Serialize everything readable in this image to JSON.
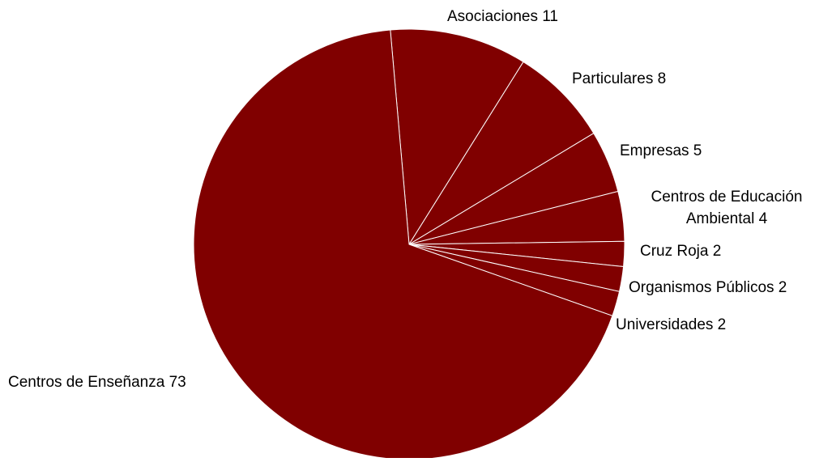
{
  "chart_data": {
    "type": "pie",
    "title": "",
    "slice_color": "#800000",
    "separator_color": "#ffffff",
    "start_angle_deg": -5,
    "direction": "clockwise",
    "slices": [
      {
        "label": "Asociaciones",
        "value": 11,
        "label_lines": [
          "Asociaciones 11"
        ]
      },
      {
        "label": "Particulares",
        "value": 8,
        "label_lines": [
          "Particulares 8"
        ]
      },
      {
        "label": "Empresas",
        "value": 5,
        "label_lines": [
          "Empresas 5"
        ]
      },
      {
        "label": "Centros de Educación Ambiental",
        "value": 4,
        "label_lines": [
          "Centros de Educación",
          "Ambiental 4"
        ]
      },
      {
        "label": "Cruz Roja",
        "value": 2,
        "label_lines": [
          "Cruz Roja 2"
        ]
      },
      {
        "label": "Organismos Públicos",
        "value": 2,
        "label_lines": [
          "Organismos Públicos 2"
        ]
      },
      {
        "label": "Universidades",
        "value": 2,
        "label_lines": [
          "Universidades 2"
        ]
      },
      {
        "label": "Centros de Enseñanza",
        "value": 73,
        "label_lines": [
          "Centros de Enseñanza 73"
        ]
      }
    ]
  }
}
